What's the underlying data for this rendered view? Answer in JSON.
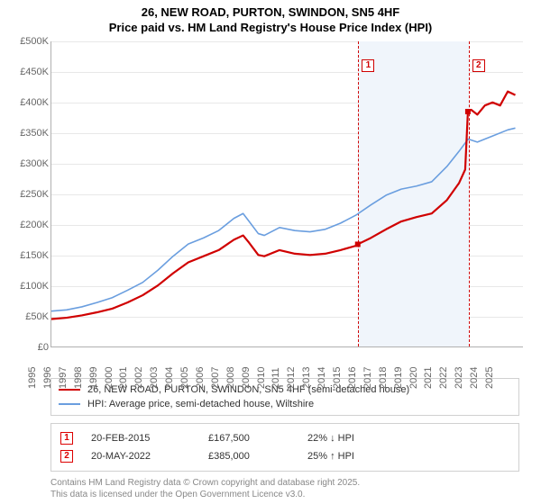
{
  "header": {
    "title": "26, NEW ROAD, PURTON, SWINDON, SN5 4HF",
    "subtitle": "Price paid vs. HM Land Registry's House Price Index (HPI)"
  },
  "chart": {
    "type": "line",
    "background_color": "#ffffff",
    "grid_color": "#e8e8e8",
    "axis_color": "#b0b0b0",
    "tick_font_size": 11,
    "tick_color": "#666666",
    "x_axis": {
      "min": 1995,
      "max": 2026,
      "ticks": [
        1995,
        1996,
        1997,
        1998,
        1999,
        2000,
        2001,
        2002,
        2003,
        2004,
        2005,
        2006,
        2007,
        2008,
        2009,
        2010,
        2011,
        2012,
        2013,
        2014,
        2015,
        2016,
        2017,
        2018,
        2019,
        2020,
        2021,
        2022,
        2023,
        2024,
        2025
      ],
      "rotation": -90
    },
    "y_axis": {
      "min": 0,
      "max": 500000,
      "ticks": [
        0,
        50000,
        100000,
        150000,
        200000,
        250000,
        300000,
        350000,
        400000,
        450000,
        500000
      ],
      "tick_labels": [
        "£0",
        "£50K",
        "£100K",
        "£150K",
        "£200K",
        "£250K",
        "£300K",
        "£350K",
        "£400K",
        "£450K",
        "£500K"
      ]
    },
    "shaded_region": {
      "x_from": 2015.14,
      "x_to": 2022.38,
      "color": "#f0f5fb"
    },
    "markers": {
      "color": "#d00000",
      "items": [
        {
          "id": "1",
          "x": 2015.14,
          "box_y": 470000
        },
        {
          "id": "2",
          "x": 2022.38,
          "box_y": 470000
        }
      ]
    },
    "series": [
      {
        "name": "price",
        "label": "26, NEW ROAD, PURTON, SWINDON, SN5 4HF (semi-detached house)",
        "color": "#d00000",
        "line_width": 2.2,
        "data": [
          [
            1995,
            45000
          ],
          [
            1996,
            47000
          ],
          [
            1997,
            51000
          ],
          [
            1998,
            56000
          ],
          [
            1999,
            62000
          ],
          [
            2000,
            72000
          ],
          [
            2001,
            84000
          ],
          [
            2002,
            100000
          ],
          [
            2003,
            120000
          ],
          [
            2004,
            138000
          ],
          [
            2005,
            148000
          ],
          [
            2006,
            158000
          ],
          [
            2007,
            175000
          ],
          [
            2007.6,
            182000
          ],
          [
            2008,
            170000
          ],
          [
            2008.6,
            150000
          ],
          [
            2009,
            148000
          ],
          [
            2010,
            158000
          ],
          [
            2011,
            152000
          ],
          [
            2012,
            150000
          ],
          [
            2013,
            152000
          ],
          [
            2014,
            158000
          ],
          [
            2015,
            165000
          ],
          [
            2015.14,
            167500
          ],
          [
            2016,
            178000
          ],
          [
            2017,
            192000
          ],
          [
            2018,
            205000
          ],
          [
            2019,
            212000
          ],
          [
            2020,
            218000
          ],
          [
            2021,
            240000
          ],
          [
            2021.8,
            268000
          ],
          [
            2022.2,
            290000
          ],
          [
            2022.38,
            385000
          ],
          [
            2022.6,
            388000
          ],
          [
            2023,
            380000
          ],
          [
            2023.5,
            395000
          ],
          [
            2024,
            400000
          ],
          [
            2024.5,
            395000
          ],
          [
            2025,
            418000
          ],
          [
            2025.5,
            412000
          ]
        ],
        "marker_dots": [
          {
            "x": 2015.14,
            "y": 167500
          },
          {
            "x": 2022.38,
            "y": 385000
          }
        ]
      },
      {
        "name": "hpi",
        "label": "HPI: Average price, semi-detached house, Wiltshire",
        "color": "#6a9edf",
        "line_width": 1.6,
        "data": [
          [
            1995,
            58000
          ],
          [
            1996,
            60000
          ],
          [
            1997,
            65000
          ],
          [
            1998,
            72000
          ],
          [
            1999,
            80000
          ],
          [
            2000,
            92000
          ],
          [
            2001,
            105000
          ],
          [
            2002,
            125000
          ],
          [
            2003,
            148000
          ],
          [
            2004,
            168000
          ],
          [
            2005,
            178000
          ],
          [
            2006,
            190000
          ],
          [
            2007,
            210000
          ],
          [
            2007.6,
            218000
          ],
          [
            2008,
            205000
          ],
          [
            2008.6,
            185000
          ],
          [
            2009,
            182000
          ],
          [
            2010,
            195000
          ],
          [
            2011,
            190000
          ],
          [
            2012,
            188000
          ],
          [
            2013,
            192000
          ],
          [
            2014,
            202000
          ],
          [
            2015,
            215000
          ],
          [
            2016,
            232000
          ],
          [
            2017,
            248000
          ],
          [
            2018,
            258000
          ],
          [
            2019,
            263000
          ],
          [
            2020,
            270000
          ],
          [
            2021,
            295000
          ],
          [
            2021.8,
            320000
          ],
          [
            2022.4,
            340000
          ],
          [
            2023,
            335000
          ],
          [
            2023.5,
            340000
          ],
          [
            2024,
            345000
          ],
          [
            2025,
            355000
          ],
          [
            2025.5,
            358000
          ]
        ]
      }
    ]
  },
  "legend": {
    "border_color": "#d0d0d0",
    "font_size": 11
  },
  "sales": {
    "rows": [
      {
        "id": "1",
        "date": "20-FEB-2015",
        "price": "£167,500",
        "hpi": "22% ↓ HPI"
      },
      {
        "id": "2",
        "date": "20-MAY-2022",
        "price": "£385,000",
        "hpi": "25% ↑ HPI"
      }
    ]
  },
  "footer": {
    "line1": "Contains HM Land Registry data © Crown copyright and database right 2025.",
    "line2": "This data is licensed under the Open Government Licence v3.0."
  }
}
